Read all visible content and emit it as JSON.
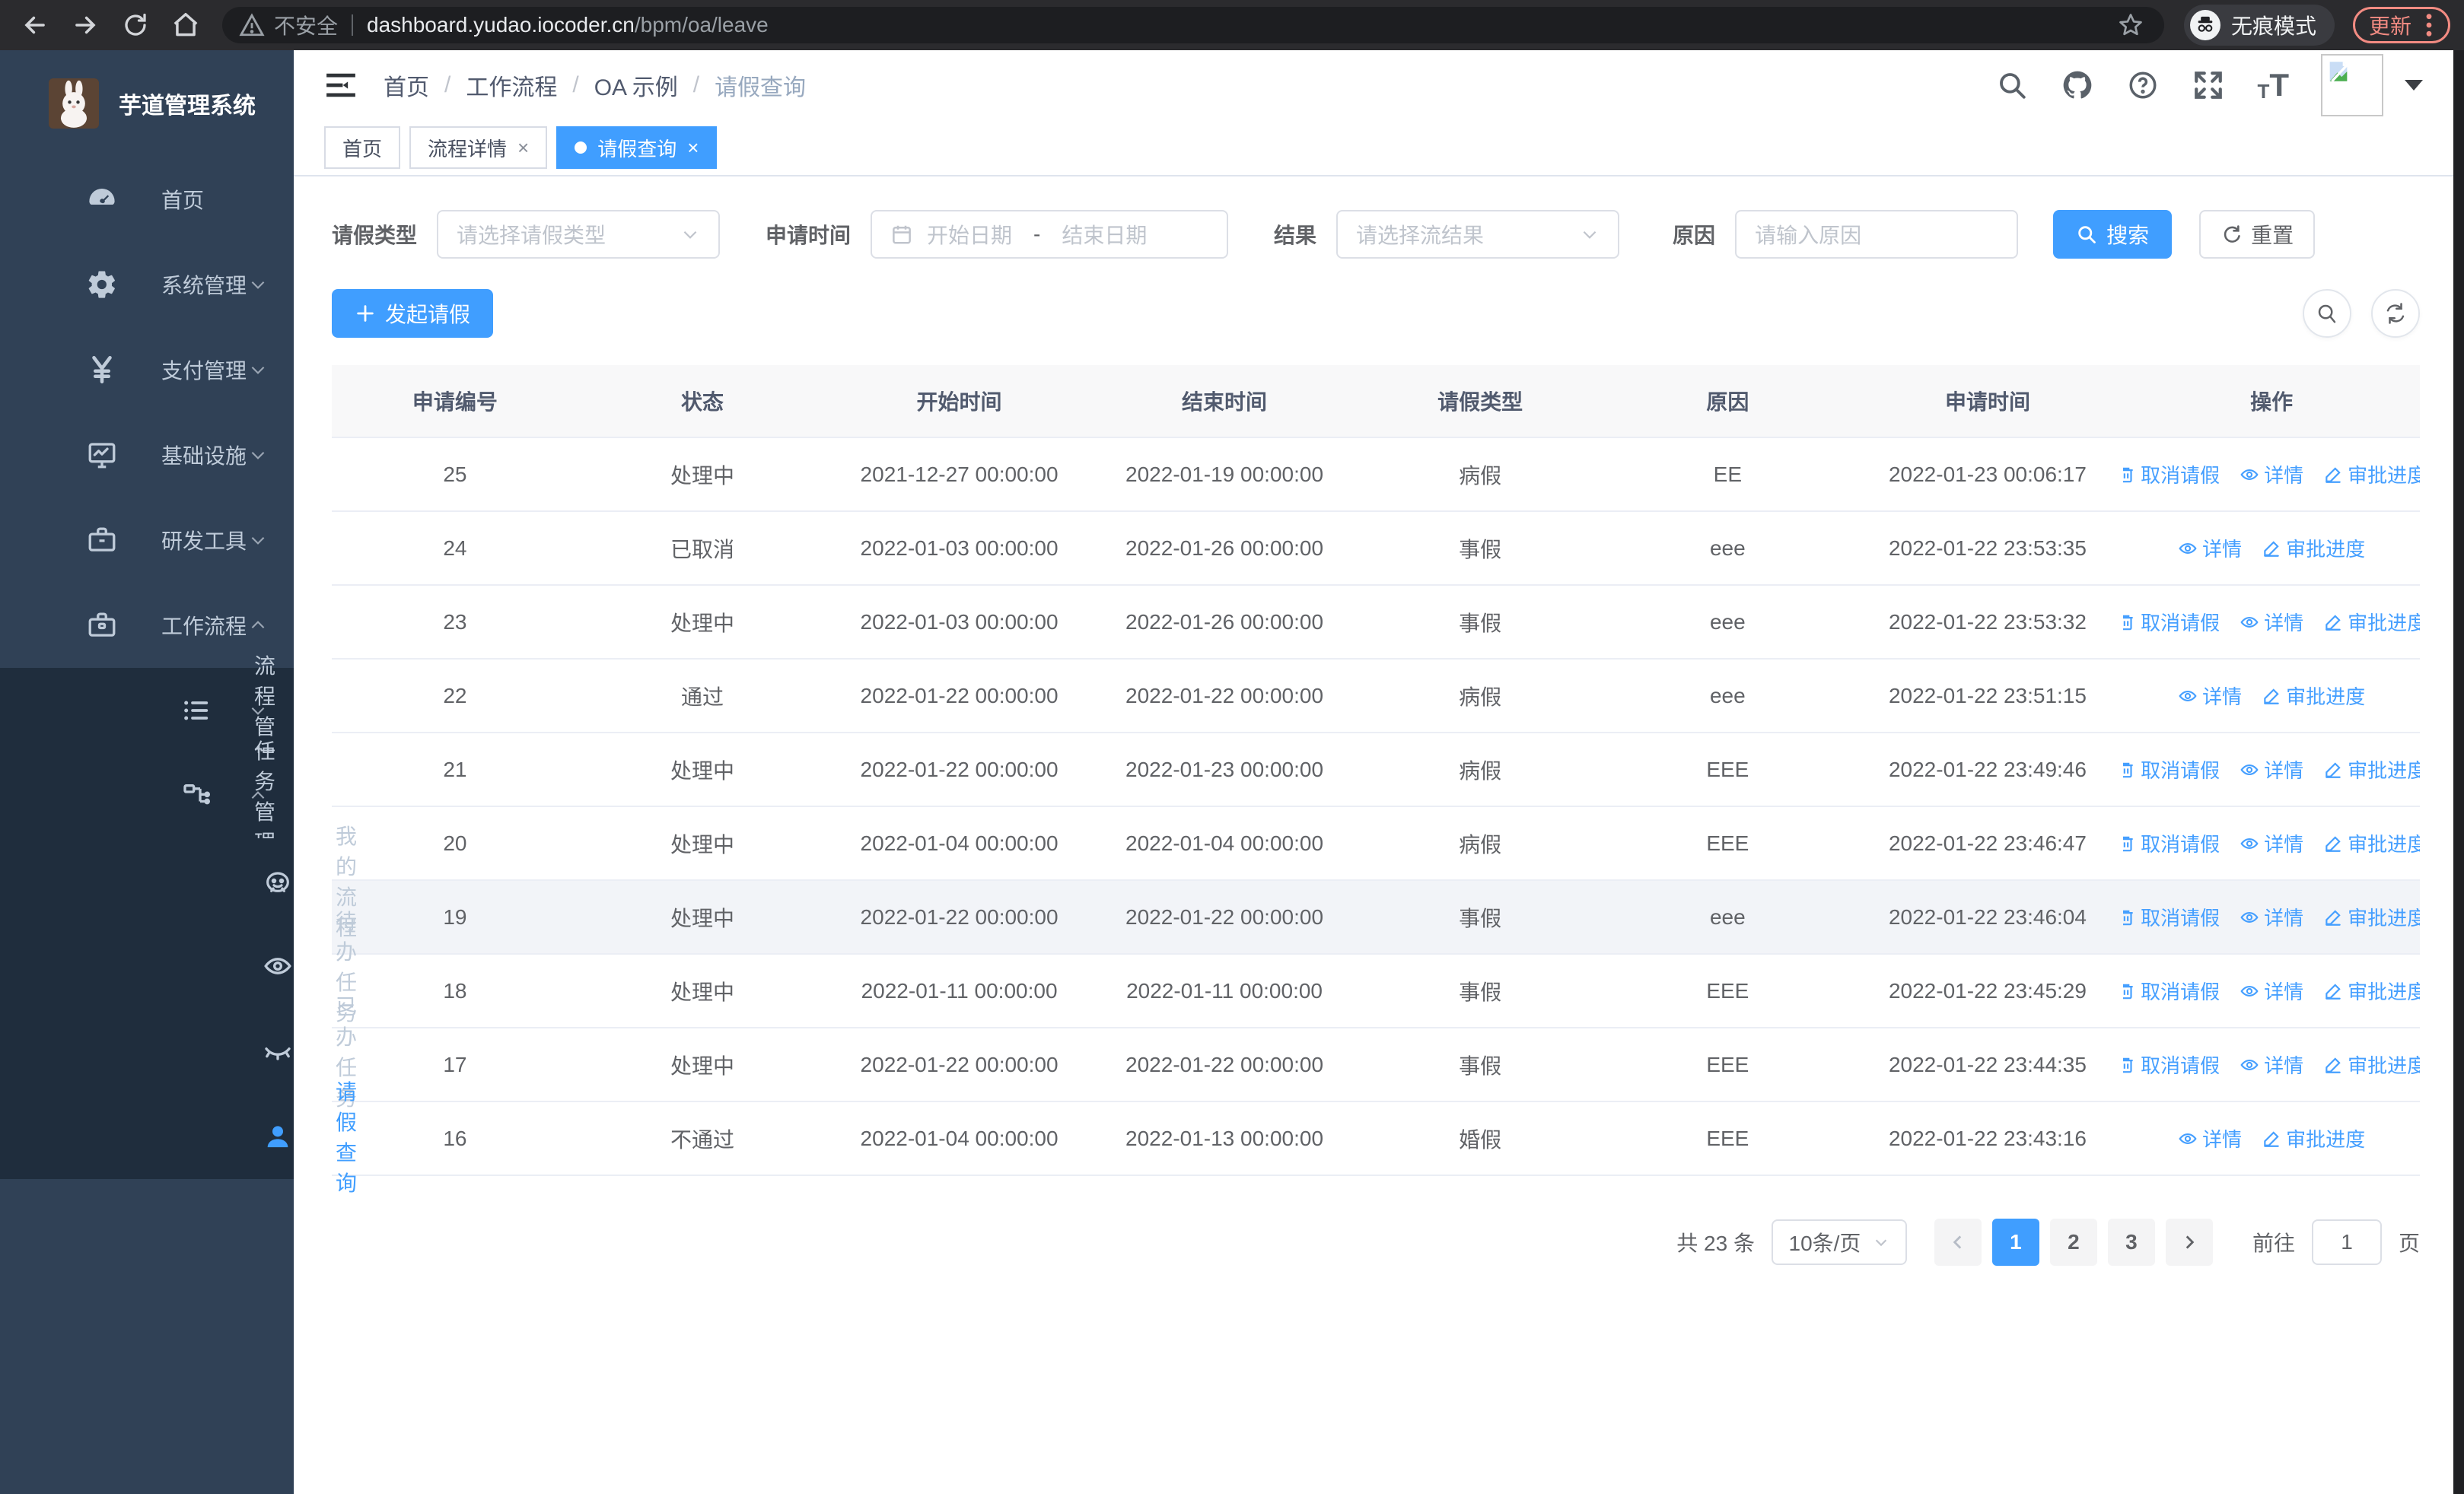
{
  "browser": {
    "security_label": "不安全",
    "url_host": "dashboard.yudao.iocoder.cn",
    "url_path": "/bpm/oa/leave",
    "incognito_label": "无痕模式",
    "update_label": "更新"
  },
  "sidebar": {
    "app_title": "芋道管理系统",
    "items": [
      {
        "label": "首页",
        "icon": "dashboard-icon",
        "level": 1,
        "chevron": "",
        "dark": false,
        "active": false
      },
      {
        "label": "系统管理",
        "icon": "gear-icon",
        "level": 1,
        "chevron": "down",
        "dark": false,
        "active": false
      },
      {
        "label": "支付管理",
        "icon": "yen-icon",
        "level": 1,
        "chevron": "down",
        "dark": false,
        "active": false
      },
      {
        "label": "基础设施",
        "icon": "monitor-icon",
        "level": 1,
        "chevron": "down",
        "dark": false,
        "active": false
      },
      {
        "label": "研发工具",
        "icon": "toolbox-icon",
        "level": 1,
        "chevron": "down",
        "dark": false,
        "active": false
      },
      {
        "label": "工作流程",
        "icon": "briefcase-icon",
        "level": 1,
        "chevron": "up",
        "dark": false,
        "active": false
      },
      {
        "label": "流程管理",
        "icon": "list-icon",
        "level": 2,
        "chevron": "down",
        "dark": true,
        "active": false
      },
      {
        "label": "任务管理",
        "icon": "tree-icon",
        "level": 2,
        "chevron": "up",
        "dark": true,
        "active": false
      },
      {
        "label": "我的流程",
        "icon": "robot-icon",
        "level": 3,
        "chevron": "",
        "dark": true,
        "active": false
      },
      {
        "label": "待办任务",
        "icon": "eye-open-icon",
        "level": 3,
        "chevron": "",
        "dark": true,
        "active": false
      },
      {
        "label": "已办任务",
        "icon": "eye-closed-icon",
        "level": 3,
        "chevron": "",
        "dark": true,
        "active": false
      },
      {
        "label": "请假查询",
        "icon": "user-icon",
        "level": 3,
        "chevron": "",
        "dark": true,
        "active": true
      }
    ]
  },
  "header": {
    "breadcrumb": [
      "首页",
      "工作流程",
      "OA 示例",
      "请假查询"
    ]
  },
  "tabs": [
    {
      "label": "首页",
      "closable": false,
      "active": false
    },
    {
      "label": "流程详情",
      "closable": true,
      "active": false
    },
    {
      "label": "请假查询",
      "closable": true,
      "active": true
    }
  ],
  "filters": {
    "leave_type_label": "请假类型",
    "leave_type_placeholder": "请选择请假类型",
    "apply_time_label": "申请时间",
    "start_date_placeholder": "开始日期",
    "range_separator": "-",
    "end_date_placeholder": "结束日期",
    "result_label": "结果",
    "result_placeholder": "请选择流结果",
    "reason_label": "原因",
    "reason_placeholder": "请输入原因",
    "search_label": "搜索",
    "reset_label": "重置"
  },
  "toolbar": {
    "create_label": "发起请假"
  },
  "table": {
    "columns": [
      "申请编号",
      "状态",
      "开始时间",
      "结束时间",
      "请假类型",
      "原因",
      "申请时间",
      "操作"
    ],
    "action_labels": {
      "cancel": "取消请假",
      "detail": "详情",
      "progress": "审批进度"
    },
    "rows": [
      {
        "id": "25",
        "status": "处理中",
        "start": "2021-12-27 00:00:00",
        "end": "2022-01-19 00:00:00",
        "type": "病假",
        "reason": "EE",
        "applied": "2022-01-23 00:06:17",
        "actions": [
          "cancel",
          "detail",
          "progress"
        ],
        "highlight": false
      },
      {
        "id": "24",
        "status": "已取消",
        "start": "2022-01-03 00:00:00",
        "end": "2022-01-26 00:00:00",
        "type": "事假",
        "reason": "eee",
        "applied": "2022-01-22 23:53:35",
        "actions": [
          "detail",
          "progress"
        ],
        "highlight": false
      },
      {
        "id": "23",
        "status": "处理中",
        "start": "2022-01-03 00:00:00",
        "end": "2022-01-26 00:00:00",
        "type": "事假",
        "reason": "eee",
        "applied": "2022-01-22 23:53:32",
        "actions": [
          "cancel",
          "detail",
          "progress"
        ],
        "highlight": false
      },
      {
        "id": "22",
        "status": "通过",
        "start": "2022-01-22 00:00:00",
        "end": "2022-01-22 00:00:00",
        "type": "病假",
        "reason": "eee",
        "applied": "2022-01-22 23:51:15",
        "actions": [
          "detail",
          "progress"
        ],
        "highlight": false
      },
      {
        "id": "21",
        "status": "处理中",
        "start": "2022-01-22 00:00:00",
        "end": "2022-01-23 00:00:00",
        "type": "病假",
        "reason": "EEE",
        "applied": "2022-01-22 23:49:46",
        "actions": [
          "cancel",
          "detail",
          "progress"
        ],
        "highlight": false
      },
      {
        "id": "20",
        "status": "处理中",
        "start": "2022-01-04 00:00:00",
        "end": "2022-01-04 00:00:00",
        "type": "病假",
        "reason": "EEE",
        "applied": "2022-01-22 23:46:47",
        "actions": [
          "cancel",
          "detail",
          "progress"
        ],
        "highlight": false
      },
      {
        "id": "19",
        "status": "处理中",
        "start": "2022-01-22 00:00:00",
        "end": "2022-01-22 00:00:00",
        "type": "事假",
        "reason": "eee",
        "applied": "2022-01-22 23:46:04",
        "actions": [
          "cancel",
          "detail",
          "progress"
        ],
        "highlight": true
      },
      {
        "id": "18",
        "status": "处理中",
        "start": "2022-01-11 00:00:00",
        "end": "2022-01-11 00:00:00",
        "type": "事假",
        "reason": "EEE",
        "applied": "2022-01-22 23:45:29",
        "actions": [
          "cancel",
          "detail",
          "progress"
        ],
        "highlight": false
      },
      {
        "id": "17",
        "status": "处理中",
        "start": "2022-01-22 00:00:00",
        "end": "2022-01-22 00:00:00",
        "type": "事假",
        "reason": "EEE",
        "applied": "2022-01-22 23:44:35",
        "actions": [
          "cancel",
          "detail",
          "progress"
        ],
        "highlight": false
      },
      {
        "id": "16",
        "status": "不通过",
        "start": "2022-01-04 00:00:00",
        "end": "2022-01-13 00:00:00",
        "type": "婚假",
        "reason": "EEE",
        "applied": "2022-01-22 23:43:16",
        "actions": [
          "detail",
          "progress"
        ],
        "highlight": false
      }
    ]
  },
  "pagination": {
    "total_label": "共 23 条",
    "page_size": "10条/页",
    "pages": [
      "1",
      "2",
      "3"
    ],
    "active_page": "1",
    "goto_label": "前往",
    "goto_value": "1",
    "page_label": "页"
  },
  "colors": {
    "primary": "#409eff",
    "sidebar_bg": "#304156",
    "submenu_bg": "#1f2d3d",
    "chrome_bg": "#2b2b2e",
    "update_accent": "#f28b82"
  }
}
